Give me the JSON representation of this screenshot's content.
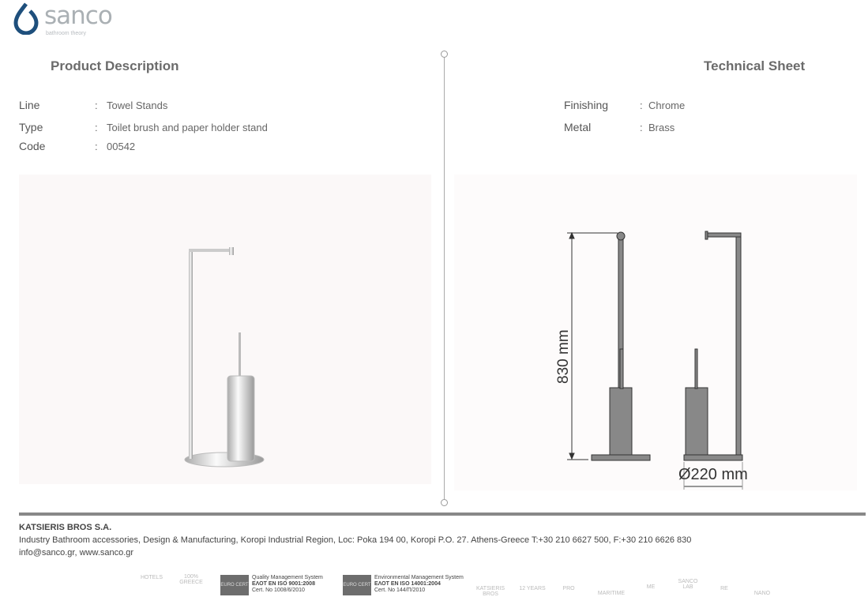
{
  "logo": {
    "word": "sanco",
    "tagline": "bathroom theory",
    "color": "#1e4f7c"
  },
  "left": {
    "title": "Product Description",
    "rows": [
      {
        "label": "Line",
        "value": "Towel Stands"
      },
      {
        "label": "Type",
        "value": "Toilet brush and paper holder stand"
      },
      {
        "label": "Code",
        "value": "00542"
      }
    ]
  },
  "right": {
    "title": "Technical Sheet",
    "rows": [
      {
        "label": "Finishing",
        "value": "Chrome"
      },
      {
        "label": "Metal",
        "value": "Brass"
      }
    ]
  },
  "drawing": {
    "height_label": "830 mm",
    "diameter_label": "Ø220 mm"
  },
  "footer": {
    "company": "KATSIERIS BROS S.A.",
    "address": "Industry Bathroom accessories, Design & Manufacturing, Koropi Industrial Region, Loc: Poka 194 00, Koropi P.O. 27. Athens-Greece   T:+30 210 6627 500, F:+30 210 6626 830",
    "contact": "info@sanco.gr, www.sanco.gr"
  },
  "certs": [
    {
      "badge": "EURO CERT",
      "line1": "Quality Management System",
      "line2": "ΕΛΟΤ EN ISO 9001:2008",
      "line3": "Cert. No 1008/6/2010"
    },
    {
      "badge": "EURO CERT",
      "line1": "Environmental Management System",
      "line2": "ΕΛΟΤ EN ISO 14001:2004",
      "line3": "Cert. No 144/Π/2010"
    }
  ],
  "badges": [
    "HOTELS",
    "100% GREECE",
    "KATSIERIS BROS",
    "12 YEARS",
    "PRO",
    "MARITIME",
    "ME",
    "SANCO LAB",
    "RE",
    "NANO"
  ]
}
